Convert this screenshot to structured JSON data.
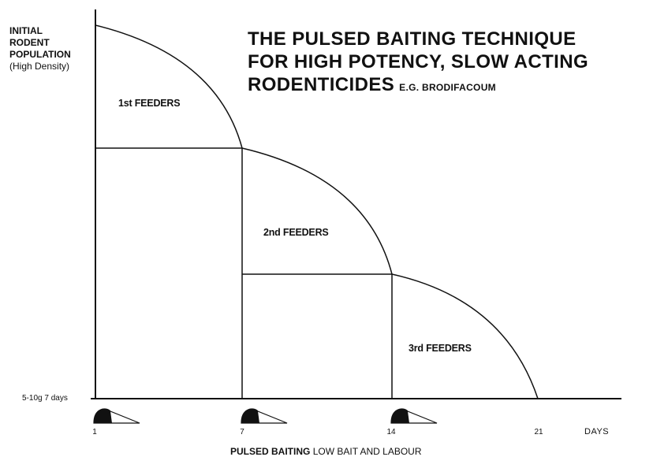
{
  "title": {
    "line1": "THE PULSED BAITING TECHNIQUE",
    "line2": "FOR HIGH POTENCY, SLOW ACTING",
    "line3": "RODENTICIDES",
    "example": "E.G. BRODIFACOUM"
  },
  "y_axis": {
    "line1": "INITIAL",
    "line2": "RODENT",
    "line3": "POPULATION",
    "line4": "(High Density)"
  },
  "dose_label": "5-10g 7 days",
  "feeders": [
    "1st FEEDERS",
    "2nd FEEDERS",
    "3rd FEEDERS"
  ],
  "x_ticks": [
    "1",
    "7",
    "14",
    "21"
  ],
  "x_unit": "DAYS",
  "caption": {
    "bold": "PULSED BAITING",
    "normal": "LOW BAIT AND LABOUR"
  },
  "colors": {
    "ink": "#111111",
    "background": "#ffffff"
  }
}
